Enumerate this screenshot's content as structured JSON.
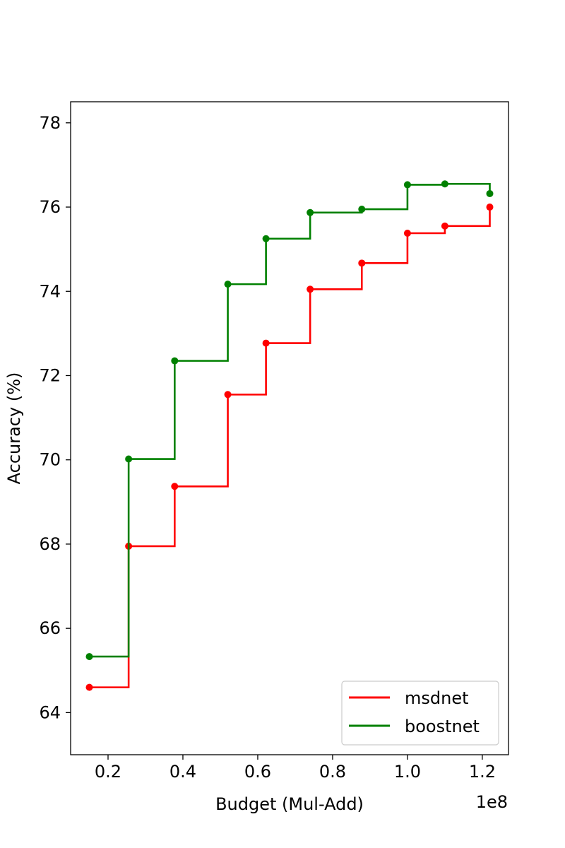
{
  "chart_data": {
    "type": "line",
    "step": "post",
    "xlabel": "Budget (Mul-Add)",
    "ylabel": "Accuracy (%)",
    "x_offset_label": "1e8",
    "xlim": [
      0.1,
      1.27
    ],
    "ylim": [
      63.0,
      78.5
    ],
    "xticks": [
      "0.2",
      "0.4",
      "0.6",
      "0.8",
      "1.0",
      "1.2"
    ],
    "yticks": [
      "64",
      "66",
      "68",
      "70",
      "72",
      "74",
      "76",
      "78"
    ],
    "grid": false,
    "legend_position": "lower-right",
    "x": [
      0.15,
      0.255,
      0.378,
      0.52,
      0.622,
      0.74,
      0.878,
      1.0,
      1.1,
      1.22
    ],
    "series": [
      {
        "name": "msdnet",
        "color": "#ff0000",
        "values": [
          64.6,
          67.95,
          69.37,
          71.55,
          72.77,
          74.05,
          74.67,
          75.38,
          75.55,
          76.0
        ]
      },
      {
        "name": "boostnet",
        "color": "#008000",
        "values": [
          65.33,
          70.02,
          72.35,
          74.17,
          75.25,
          75.87,
          75.95,
          76.53,
          76.55,
          76.32
        ]
      }
    ]
  }
}
